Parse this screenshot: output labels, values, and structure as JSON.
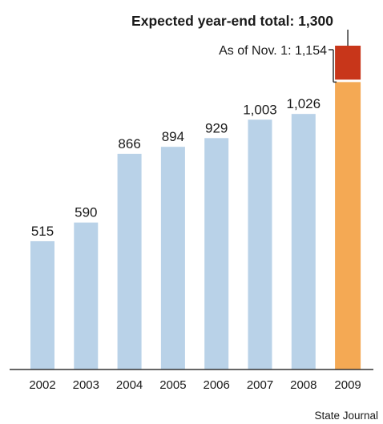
{
  "chart_data": {
    "type": "bar",
    "title": "Expected year-end total: 1,300",
    "categories": [
      "2002",
      "2003",
      "2004",
      "2005",
      "2006",
      "2007",
      "2008",
      "2009"
    ],
    "values": [
      515,
      590,
      866,
      894,
      929,
      1003,
      1026,
      1154
    ],
    "value_labels": [
      "515",
      "590",
      "866",
      "894",
      "929",
      "1,003",
      "1,026",
      ""
    ],
    "projection": {
      "category": "2009",
      "value": 1300
    },
    "annotation": "As of Nov. 1: 1,154",
    "ylim": [
      0,
      1300
    ],
    "grid": false,
    "colors": {
      "bar": "#b9d2e8",
      "current": "#f4a954",
      "projected": "#c8361a",
      "axis": "#333333"
    }
  },
  "credit": "State Journal"
}
